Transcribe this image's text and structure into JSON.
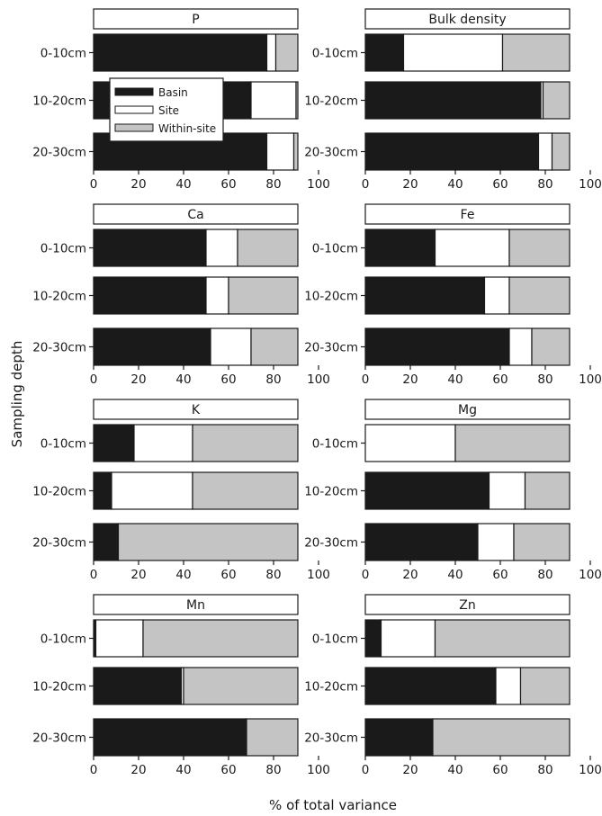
{
  "chart_data": {
    "type": "bar",
    "orientation": "horizontal",
    "stacked": true,
    "categories": [
      "0-10cm",
      "10-20cm",
      "20-30cm"
    ],
    "xlabel": "% of total variance",
    "ylabel": "Sampling depth",
    "xlim": [
      0,
      100
    ],
    "xticks": [
      "0",
      "20",
      "40",
      "60",
      "80",
      "100"
    ],
    "legend": {
      "position": "inside top-left of first panel",
      "entries": [
        {
          "name": "Basin",
          "color": "#1a1a1a"
        },
        {
          "name": "Site",
          "color": "#ffffff"
        },
        {
          "name": "Within-site",
          "color": "#c4c4c4"
        }
      ]
    },
    "colors": {
      "Basin": "#1a1a1a",
      "Site": "#ffffff",
      "Within-site": "#c4c4c4"
    },
    "panels": [
      {
        "title": "P",
        "series": [
          {
            "name": "Basin",
            "values": [
              77,
              70,
              77
            ]
          },
          {
            "name": "Site",
            "values": [
              4,
              20,
              12
            ]
          },
          {
            "name": "Within-site",
            "values": [
              19,
              10,
              11
            ]
          }
        ]
      },
      {
        "title": "Bulk density",
        "series": [
          {
            "name": "Basin",
            "values": [
              17,
              78,
              77
            ]
          },
          {
            "name": "Site",
            "values": [
              44,
              1,
              6
            ]
          },
          {
            "name": "Within-site",
            "values": [
              39,
              21,
              17
            ]
          }
        ]
      },
      {
        "title": "Ca",
        "series": [
          {
            "name": "Basin",
            "values": [
              50,
              50,
              52
            ]
          },
          {
            "name": "Site",
            "values": [
              14,
              10,
              18
            ]
          },
          {
            "name": "Within-site",
            "values": [
              36,
              40,
              30
            ]
          }
        ]
      },
      {
        "title": "Fe",
        "series": [
          {
            "name": "Basin",
            "values": [
              31,
              53,
              64
            ]
          },
          {
            "name": "Site",
            "values": [
              33,
              11,
              10
            ]
          },
          {
            "name": "Within-site",
            "values": [
              36,
              36,
              26
            ]
          }
        ]
      },
      {
        "title": "K",
        "series": [
          {
            "name": "Basin",
            "values": [
              18,
              8,
              11
            ]
          },
          {
            "name": "Site",
            "values": [
              26,
              36,
              0
            ]
          },
          {
            "name": "Within-site",
            "values": [
              56,
              56,
              89
            ]
          }
        ]
      },
      {
        "title": "Mg",
        "series": [
          {
            "name": "Basin",
            "values": [
              0,
              55,
              50
            ]
          },
          {
            "name": "Site",
            "values": [
              40,
              16,
              16
            ]
          },
          {
            "name": "Within-site",
            "values": [
              60,
              29,
              34
            ]
          }
        ]
      },
      {
        "title": "Mn",
        "series": [
          {
            "name": "Basin",
            "values": [
              1,
              39,
              68
            ]
          },
          {
            "name": "Site",
            "values": [
              21,
              1,
              0
            ]
          },
          {
            "name": "Within-site",
            "values": [
              78,
              60,
              32
            ]
          }
        ]
      },
      {
        "title": "Zn",
        "series": [
          {
            "name": "Basin",
            "values": [
              7,
              58,
              30
            ]
          },
          {
            "name": "Site",
            "values": [
              24,
              11,
              0
            ]
          },
          {
            "name": "Within-site",
            "values": [
              69,
              31,
              70
            ]
          }
        ]
      }
    ]
  }
}
